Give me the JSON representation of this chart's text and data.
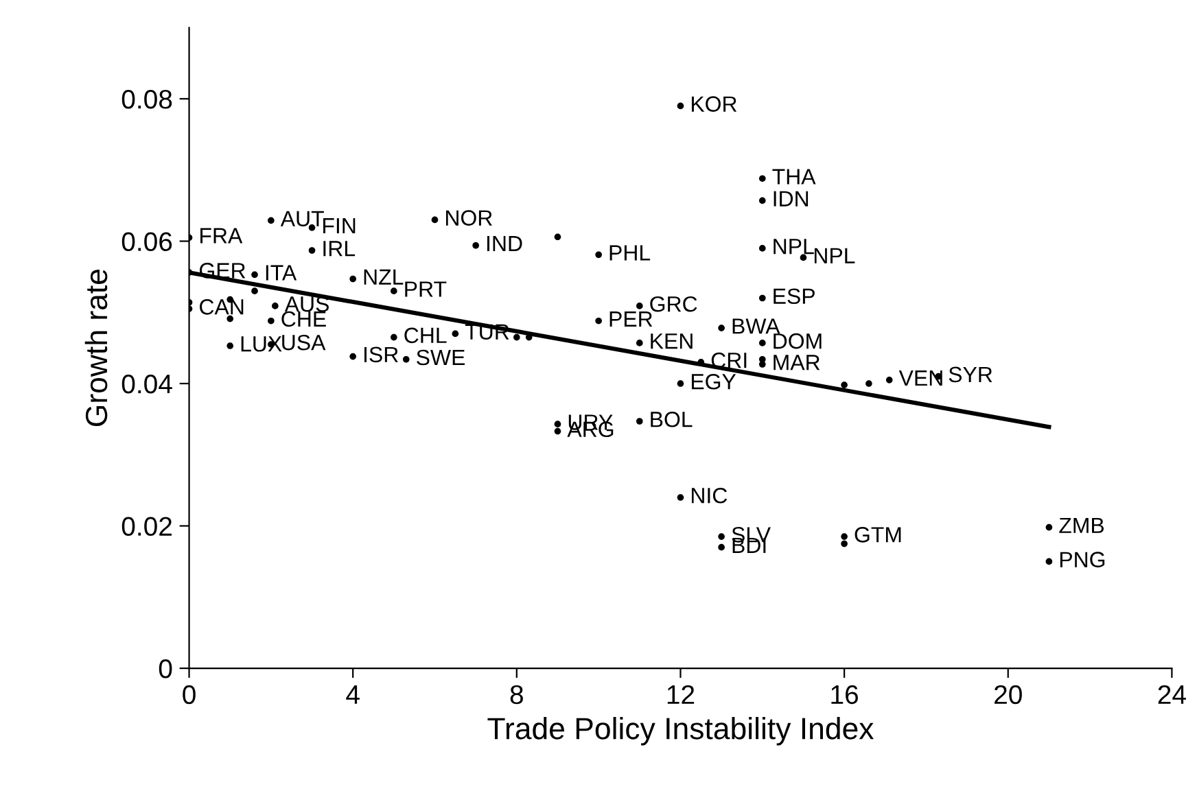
{
  "chart_data": {
    "type": "scatter",
    "xlabel": "Trade Policy Instability Index",
    "ylabel": "Growth rate",
    "xlim": [
      0,
      24
    ],
    "xticks": [
      0,
      4,
      8,
      12,
      16,
      20,
      24
    ],
    "ylim": [
      0,
      0.09
    ],
    "yticks": [
      0,
      0.02,
      0.04,
      0.06,
      0.08
    ],
    "grid": false,
    "series": [
      {
        "marker": "circle",
        "color": "#000000",
        "x": [
          0,
          0,
          0,
          0,
          2,
          3,
          6,
          7,
          3,
          9,
          10,
          12,
          1.6,
          1.6,
          1,
          2.1,
          1,
          2,
          1,
          2,
          4,
          5,
          5,
          4,
          5.3,
          6.5,
          8,
          8.3,
          10,
          11,
          11,
          13,
          12.5,
          12,
          9,
          9,
          11,
          14,
          14,
          14,
          15,
          14,
          14,
          14,
          14,
          14.3,
          16,
          16.6,
          17.1,
          18.3,
          12,
          13,
          13,
          16,
          16,
          21,
          21
        ],
        "values": [
          0.0605,
          0.0556,
          0.0514,
          0.0505,
          0.0629,
          0.0619,
          0.063,
          0.0594,
          0.0587,
          0.0606,
          0.0581,
          0.079,
          0.0553,
          0.053,
          0.0518,
          0.0509,
          0.0491,
          0.0488,
          0.0453,
          0.0455,
          0.0547,
          0.053,
          0.0465,
          0.0438,
          0.0434,
          0.047,
          0.0465,
          0.0465,
          0.0488,
          0.0509,
          0.0457,
          0.0478,
          0.043,
          0.04,
          0.0343,
          0.0333,
          0.0347,
          0.0688,
          0.0657,
          0.059,
          0.0577,
          0.052,
          0.0457,
          0.0434,
          0.0427,
          null,
          0.0398,
          0.04,
          0.0405,
          0.041,
          0.024,
          0.0185,
          0.017,
          0.0185,
          0.0175,
          0.0198,
          0.015
        ]
      },
      {
        "type": "line",
        "marker": "none",
        "color": "#000000",
        "x": [
          0,
          21
        ],
        "values": [
          0.0556,
          0.0339
        ]
      }
    ],
    "annotations": [
      {
        "text": "FRA",
        "x": 0,
        "y": 0.0605
      },
      {
        "text": "GER",
        "x": 0,
        "y": 0.0556
      },
      {
        "text": "CAN",
        "x": 0,
        "y": 0.0505
      },
      {
        "text": "AUT",
        "x": 2,
        "y": 0.0629
      },
      {
        "text": "FIN",
        "x": 3,
        "y": 0.0619
      },
      {
        "text": "NOR",
        "x": 6,
        "y": 0.063
      },
      {
        "text": "IND",
        "x": 7,
        "y": 0.0594
      },
      {
        "text": "IRL",
        "x": 3,
        "y": 0.0587
      },
      {
        "text": "PHL",
        "x": 10,
        "y": 0.0581
      },
      {
        "text": "KOR",
        "x": 12,
        "y": 0.079
      },
      {
        "text": "ITA",
        "x": 1.6,
        "y": 0.0553
      },
      {
        "text": "AUS",
        "x": 2.1,
        "y": 0.0509
      },
      {
        "text": "CHE",
        "x": 2,
        "y": 0.0488
      },
      {
        "text": "LUX",
        "x": 1,
        "y": 0.0453
      },
      {
        "text": "USA",
        "x": 2,
        "y": 0.0455
      },
      {
        "text": "NZL",
        "x": 4,
        "y": 0.0547
      },
      {
        "text": "PRT",
        "x": 5,
        "y": 0.053
      },
      {
        "text": "CHL",
        "x": 5,
        "y": 0.0465
      },
      {
        "text": "ISR",
        "x": 4,
        "y": 0.0438
      },
      {
        "text": "SWE",
        "x": 5.3,
        "y": 0.0434
      },
      {
        "text": "TUR",
        "x": 6.5,
        "y": 0.047
      },
      {
        "text": "PER",
        "x": 10,
        "y": 0.0488
      },
      {
        "text": "GRC",
        "x": 11,
        "y": 0.0509
      },
      {
        "text": "KEN",
        "x": 11,
        "y": 0.0457
      },
      {
        "text": "BWA",
        "x": 13,
        "y": 0.0478
      },
      {
        "text": "CRI",
        "x": 12.5,
        "y": 0.043
      },
      {
        "text": "EGY",
        "x": 12,
        "y": 0.04
      },
      {
        "text": "URY",
        "x": 9,
        "y": 0.0343
      },
      {
        "text": "ARG",
        "x": 9,
        "y": 0.0333
      },
      {
        "text": "BOL",
        "x": 11,
        "y": 0.0347
      },
      {
        "text": "THA",
        "x": 14,
        "y": 0.0688
      },
      {
        "text": "IDN",
        "x": 14,
        "y": 0.0657
      },
      {
        "text": "NPL",
        "x": 14,
        "y": 0.059
      },
      {
        "text": "NPL",
        "x": 15,
        "y": 0.0577
      },
      {
        "text": "ESP",
        "x": 14,
        "y": 0.052
      },
      {
        "text": "DOM",
        "x": 14,
        "y": 0.0457
      },
      {
        "text": "MAR",
        "x": 14,
        "y": 0.0427
      },
      {
        "text": "VEN",
        "x": 17.1,
        "y": 0.0405
      },
      {
        "text": "SYR",
        "x": 18.3,
        "y": 0.041
      },
      {
        "text": "NIC",
        "x": 12,
        "y": 0.024
      },
      {
        "text": "SLV",
        "x": 13,
        "y": 0.0185
      },
      {
        "text": "BDI",
        "x": 13,
        "y": 0.017
      },
      {
        "text": "GTM",
        "x": 16,
        "y": 0.0185
      },
      {
        "text": "ZMB",
        "x": 21,
        "y": 0.0198
      },
      {
        "text": "PNG",
        "x": 21,
        "y": 0.015
      }
    ]
  }
}
